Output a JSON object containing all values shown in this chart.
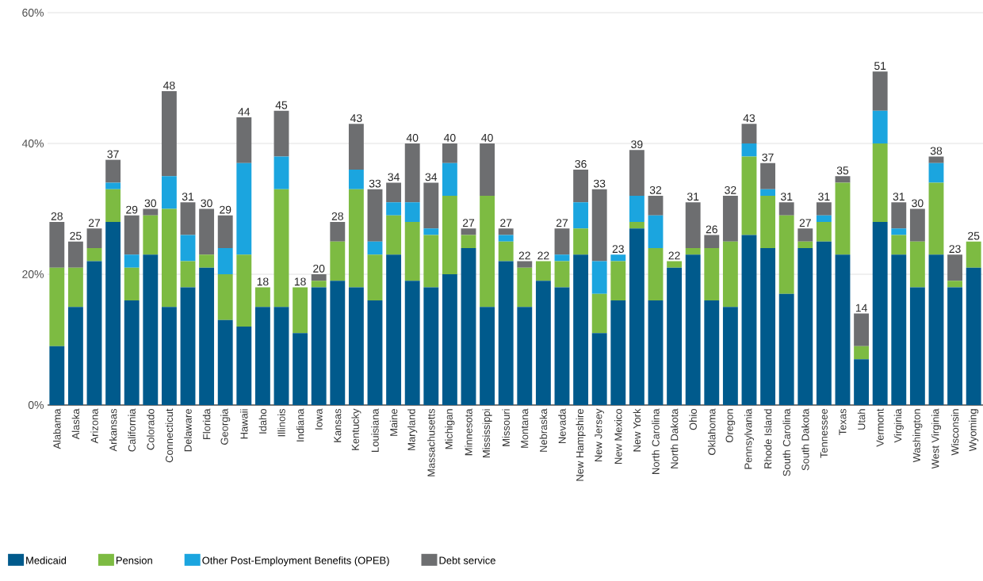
{
  "chart_data": {
    "type": "bar",
    "stacked": true,
    "categories": [
      "Alabama",
      "Alaska",
      "Arizona",
      "Arkansas",
      "California",
      "Colorado",
      "Connecticut",
      "Delaware",
      "Florida",
      "Georgia",
      "Hawaii",
      "Idaho",
      "Illinois",
      "Indiana",
      "Iowa",
      "Kansas",
      "Kentucky",
      "Louisiana",
      "Maine",
      "Maryland",
      "Massachusetts",
      "Michigan",
      "Minnesota",
      "Mississippi",
      "Missouri",
      "Montana",
      "Nebraska",
      "Nevada",
      "New Hampshire",
      "New Jersey",
      "New Mexico",
      "New York",
      "North Carolina",
      "North Dakota",
      "Ohio",
      "Oklahoma",
      "Oregon",
      "Pennsylvania",
      "Rhode Island",
      "South Carolina",
      "South Dakota",
      "Tennessee",
      "Texas",
      "Utah",
      "Vermont",
      "Virginia",
      "Washington",
      "West Virginia",
      "Wisconsin",
      "Wyoming"
    ],
    "series": [
      {
        "name": "Medicaid",
        "color": "#005a8c",
        "values": [
          9,
          15,
          22,
          28,
          16,
          23,
          15,
          18,
          21,
          13,
          12,
          15,
          15,
          11,
          18,
          19,
          18,
          16,
          23,
          19,
          18,
          20,
          24,
          15,
          22,
          15,
          19,
          18,
          23,
          11,
          16,
          27,
          16,
          21,
          23,
          16,
          15,
          26,
          24,
          17,
          24,
          25,
          23,
          7,
          28,
          23,
          18,
          23,
          18,
          21
        ]
      },
      {
        "name": "Pension",
        "color": "#7dbb42",
        "values": [
          12,
          6,
          2,
          5,
          5,
          6,
          15,
          4,
          2,
          7,
          11,
          3,
          18,
          7,
          1,
          6,
          15,
          7,
          6,
          9,
          8,
          12,
          2,
          17,
          3,
          6,
          3,
          4,
          4,
          6,
          6,
          1,
          8,
          1,
          1,
          8,
          10,
          12,
          8,
          12,
          1,
          3,
          11,
          2,
          12,
          3,
          7,
          11,
          1,
          4
        ]
      },
      {
        "name": "Other Post-Employment Benefits (OPEB)",
        "color": "#1ba5df",
        "values": [
          null,
          null,
          null,
          1,
          2,
          null,
          5,
          4,
          null,
          4,
          14,
          null,
          5,
          null,
          null,
          null,
          3,
          2,
          2,
          3,
          1,
          5,
          null,
          null,
          1,
          null,
          null,
          1,
          4,
          5,
          1,
          4,
          5,
          null,
          null,
          null,
          null,
          2,
          1,
          null,
          null,
          1,
          null,
          null,
          5,
          1,
          null,
          3,
          null,
          null
        ]
      },
      {
        "name": "Debt service",
        "color": "#6d6e70",
        "values": [
          7,
          4,
          3,
          3.5,
          6,
          1,
          13,
          5,
          7,
          5,
          7,
          null,
          7,
          null,
          1,
          3,
          7,
          8,
          3,
          9,
          7,
          3,
          1,
          8,
          1,
          1,
          null,
          4,
          5,
          11,
          null,
          7,
          3,
          null,
          7,
          2,
          7,
          3,
          4,
          2,
          2,
          2,
          1,
          5,
          6,
          4,
          5,
          1,
          4,
          null
        ]
      }
    ],
    "totals": [
      "28",
      "25",
      "27",
      "37",
      "29",
      "30",
      "48",
      "31",
      "30",
      "29",
      "44",
      "18",
      "45",
      "18",
      "20",
      "28",
      "43",
      "33",
      "34",
      "40",
      "34",
      "40",
      "27",
      "40",
      "27",
      "22",
      "22",
      "27",
      "36",
      "33",
      "23",
      "39",
      "32",
      "22",
      "31",
      "26",
      "32",
      "43",
      "37",
      "31",
      "27",
      "31",
      "35",
      "14",
      "51",
      "31",
      "30",
      "38",
      "23",
      "25"
    ],
    "ylim": [
      0,
      60
    ],
    "yticks": [
      {
        "value": 0,
        "label": "0%"
      },
      {
        "value": 20,
        "label": "20%"
      },
      {
        "value": 40,
        "label": "40%"
      },
      {
        "value": 60,
        "label": "60%"
      }
    ],
    "grid": "y",
    "legend": "bottom"
  }
}
